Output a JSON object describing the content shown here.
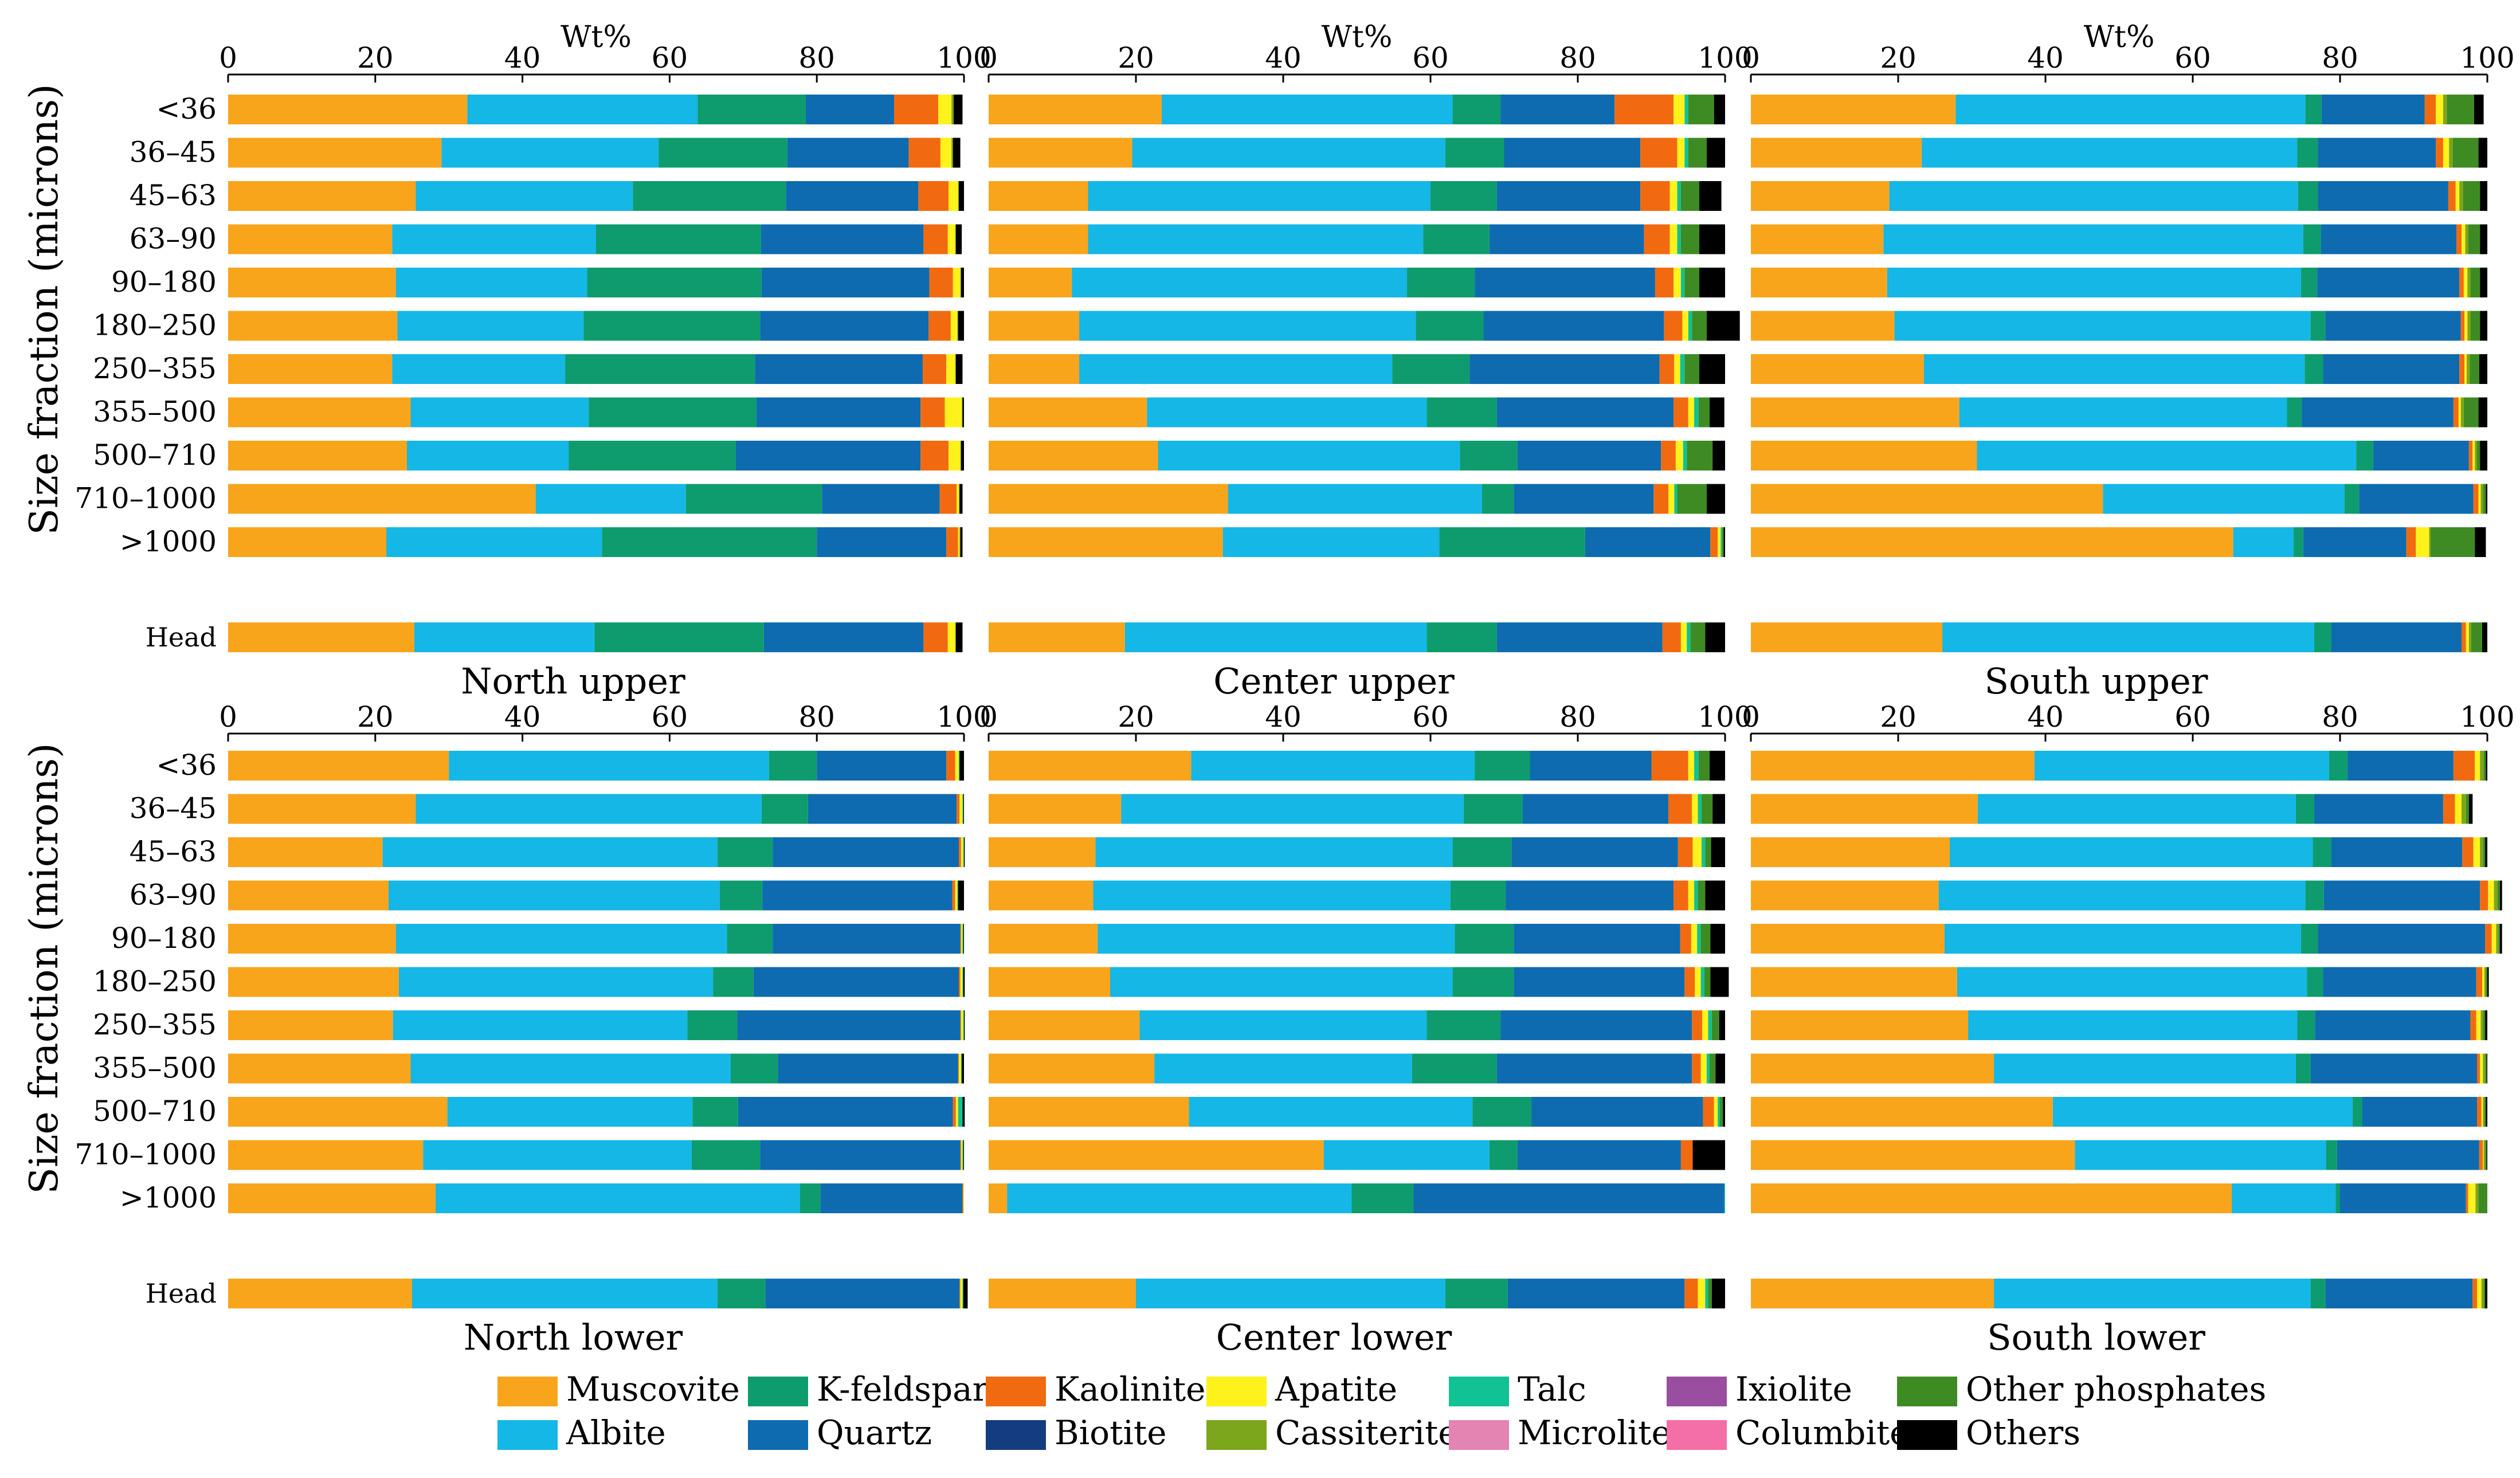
{
  "figure": {
    "ylabel": "Size fraction (microns)",
    "xlabel": "Wt%",
    "xticks": [
      "0",
      "20",
      "40",
      "60",
      "80",
      "100"
    ]
  },
  "colors": {
    "Muscovite": "#f8a51b",
    "Albite": "#14b7e5",
    "K-feldspar": "#0e9c6e",
    "Quartz": "#0e6bb0",
    "Kaolinite": "#f26a10",
    "Biotite": "#143c80",
    "Apatite": "#fff21c",
    "Cassiterite": "#7ca61c",
    "Talc": "#10c294",
    "Microlite": "#e384b2",
    "Ixiolite": "#9a4ea0",
    "Columbite": "#f46ea8",
    "Other phosphates": "#3e8b23",
    "Others": "#000000"
  },
  "legend": [
    "Muscovite",
    "K-feldspar",
    "Kaolinite",
    "Apatite",
    "Talc",
    "Ixiolite",
    "Other phosphates",
    "Albite",
    "Quartz",
    "Biotite",
    "Cassiterite",
    "Microlite",
    "Columbite",
    "Others"
  ],
  "chart_data": [
    {
      "type": "bar",
      "orientation": "horizontal",
      "stacked": true,
      "title": "North upper",
      "xlabel": "Wt%",
      "ylabel": "Size fraction (microns)",
      "xlim": [
        0,
        100
      ],
      "categories": [
        "<36",
        "36–45",
        "45–63",
        "63–90",
        "90–180",
        "180–250",
        "250–355",
        "355–500",
        "500–710",
        "710–1000",
        ">1000",
        "Head"
      ],
      "series": [
        {
          "name": "Muscovite",
          "values": [
            32.5,
            29,
            25.5,
            22.3,
            22.8,
            23,
            22.3,
            24.8,
            24.3,
            41.8,
            21.5,
            25.3
          ]
        },
        {
          "name": "Albite",
          "values": [
            31.3,
            29.5,
            29.5,
            27.7,
            26,
            25.3,
            23.5,
            24.2,
            22,
            20.4,
            29.3,
            24.5
          ]
        },
        {
          "name": "K-feldspar",
          "values": [
            14.7,
            17.5,
            20.8,
            22.4,
            23.7,
            24,
            25.8,
            22.8,
            22.7,
            18.5,
            29.2,
            23
          ]
        },
        {
          "name": "Quartz",
          "values": [
            12,
            16.5,
            18,
            22.1,
            22.8,
            22.9,
            22.8,
            22.3,
            25.1,
            16,
            17.6,
            21.7
          ]
        },
        {
          "name": "Kaolinite",
          "values": [
            6,
            4.3,
            4.1,
            3.3,
            3.2,
            3,
            3.2,
            3.3,
            3.8,
            2.3,
            1.6,
            3.3
          ]
        },
        {
          "name": "Apatite",
          "values": [
            1.8,
            1.5,
            1.3,
            1,
            1,
            0.9,
            1.2,
            2.3,
            1.6,
            0.3,
            0.2,
            1
          ]
        },
        {
          "name": "Cassiterite",
          "values": [
            0.3,
            0.2,
            0.1,
            0.1,
            0.1,
            0.1,
            0.1,
            0.1,
            0.1,
            0.1,
            0.1,
            0.1
          ]
        },
        {
          "name": "Others",
          "values": [
            1.2,
            1,
            0.7,
            0.8,
            0.4,
            0.8,
            0.9,
            0.2,
            0.4,
            0.4,
            0.3,
            0.9
          ]
        }
      ]
    },
    {
      "type": "bar",
      "orientation": "horizontal",
      "stacked": true,
      "title": "Center upper",
      "xlabel": "Wt%",
      "ylabel": "Size fraction (microns)",
      "xlim": [
        0,
        100
      ],
      "categories": [
        "<36",
        "36–45",
        "45–63",
        "63–90",
        "90–180",
        "180–250",
        "250–355",
        "355–500",
        "500–710",
        "710–1000",
        ">1000",
        "Head"
      ],
      "series": [
        {
          "name": "Muscovite",
          "values": [
            23.5,
            19.5,
            13.5,
            13.5,
            11.3,
            12.3,
            12.3,
            21.5,
            23,
            32.5,
            31.8,
            18.5
          ]
        },
        {
          "name": "Albite",
          "values": [
            39.5,
            42.5,
            46.5,
            45.5,
            45.5,
            45.7,
            42.5,
            38,
            41,
            34.5,
            29.4,
            41
          ]
        },
        {
          "name": "K-feldspar",
          "values": [
            6.5,
            8,
            9,
            9,
            9.2,
            9.2,
            10.5,
            9.5,
            7.8,
            4.3,
            19.8,
            9.5
          ]
        },
        {
          "name": "Quartz",
          "values": [
            15.5,
            18.5,
            19.5,
            21,
            24.5,
            24.5,
            25.8,
            24,
            19.5,
            19,
            17,
            22.5
          ]
        },
        {
          "name": "Kaolinite",
          "values": [
            8,
            5,
            4,
            3.5,
            2.5,
            2.5,
            2,
            2,
            2,
            2,
            1,
            2.5
          ]
        },
        {
          "name": "Apatite",
          "values": [
            1.5,
            1,
            1,
            1,
            1,
            0.8,
            0.8,
            0.8,
            1,
            0.8,
            0.4,
            0.8
          ]
        },
        {
          "name": "Talc",
          "values": [
            0.5,
            0.5,
            0.5,
            0.5,
            0.5,
            0.5,
            0.6,
            0.6,
            0.5,
            0.4,
            0.2,
            0.5
          ]
        },
        {
          "name": "Other phosphates",
          "values": [
            3.5,
            2.5,
            2.5,
            2.5,
            2,
            2,
            2,
            1.5,
            3.5,
            4,
            0.2,
            2
          ]
        },
        {
          "name": "Others",
          "values": [
            1.5,
            2.5,
            3,
            3.5,
            3.5,
            4.5,
            3.5,
            2,
            1.7,
            2.5,
            0.2,
            2.7
          ]
        }
      ]
    },
    {
      "type": "bar",
      "orientation": "horizontal",
      "stacked": true,
      "title": "South upper",
      "xlabel": "Wt%",
      "ylabel": "Size fraction (microns)",
      "xlim": [
        0,
        100
      ],
      "categories": [
        "<36",
        "36–45",
        "45–63",
        "63–90",
        "90–180",
        "180–250",
        "250–355",
        "355–500",
        "500–710",
        "710–1000",
        ">1000",
        "Head"
      ],
      "series": [
        {
          "name": "Muscovite",
          "values": [
            27.8,
            23.2,
            18.8,
            18,
            18.5,
            19.5,
            23.5,
            28.3,
            30.7,
            47.8,
            65.5,
            26
          ]
        },
        {
          "name": "Albite",
          "values": [
            47.5,
            51,
            55.5,
            57,
            56.2,
            56.5,
            51.7,
            44.5,
            51.5,
            32.8,
            8.2,
            50.5
          ]
        },
        {
          "name": "K-feldspar",
          "values": [
            2.2,
            2.8,
            2.7,
            2.4,
            2.2,
            2,
            2.5,
            2,
            2.3,
            2,
            1.3,
            2.3
          ]
        },
        {
          "name": "Quartz",
          "values": [
            14,
            16,
            17.7,
            18.4,
            19.3,
            18.4,
            18.5,
            20.6,
            13,
            15.5,
            14,
            17.7
          ]
        },
        {
          "name": "Kaolinite",
          "values": [
            1.5,
            1,
            1,
            0.7,
            0.6,
            0.5,
            0.7,
            0.7,
            0.5,
            0.7,
            1.3,
            0.6
          ]
        },
        {
          "name": "Apatite",
          "values": [
            1,
            0.8,
            0.5,
            0.5,
            0.5,
            0.4,
            0.3,
            0.3,
            0.3,
            0.3,
            1.8,
            0.4
          ]
        },
        {
          "name": "Cassiterite",
          "values": [
            0.5,
            0.5,
            0.5,
            0.4,
            0.4,
            0.4,
            0.4,
            0.4,
            0.3,
            0.3,
            0.2,
            0.3
          ]
        },
        {
          "name": "Other phosphates",
          "values": [
            3.7,
            3.5,
            2.3,
            1.6,
            1.3,
            1.3,
            1.3,
            2,
            0.4,
            0.4,
            6,
            1.5
          ]
        },
        {
          "name": "Others",
          "values": [
            1.3,
            1.2,
            1,
            1,
            1,
            1,
            1.1,
            1.2,
            1,
            0.2,
            1.5,
            0.7
          ]
        }
      ]
    },
    {
      "type": "bar",
      "orientation": "horizontal",
      "stacked": true,
      "title": "North lower",
      "xlabel": "Wt%",
      "ylabel": "Size fraction (microns)",
      "xlim": [
        0,
        100
      ],
      "categories": [
        "<36",
        "36–45",
        "45–63",
        "63–90",
        "90–180",
        "180–250",
        "250–355",
        "355–500",
        "500–710",
        "710–1000",
        ">1000",
        "Head"
      ],
      "series": [
        {
          "name": "Muscovite",
          "values": [
            30,
            25.5,
            21,
            21.8,
            22.8,
            23.2,
            22.4,
            24.8,
            29.8,
            26.5,
            28.2,
            25
          ]
        },
        {
          "name": "Albite",
          "values": [
            43.5,
            47,
            45.5,
            45,
            45,
            42.7,
            40,
            43.5,
            33.3,
            36.5,
            49.5,
            41.5
          ]
        },
        {
          "name": "K-feldspar",
          "values": [
            6.5,
            6.3,
            7.5,
            5.8,
            6.2,
            5.5,
            6.8,
            6.4,
            6.2,
            9.3,
            2.8,
            6.5
          ]
        },
        {
          "name": "Quartz",
          "values": [
            17.6,
            20.2,
            25.3,
            25.8,
            25.5,
            27.9,
            30.3,
            24.5,
            29.2,
            27.2,
            19.3,
            26.4
          ]
        },
        {
          "name": "Kaolinite",
          "values": [
            1.2,
            0.4,
            0.3,
            0.4,
            0.1,
            0.2,
            0.1,
            0.1,
            0.4,
            0.1,
            0.1,
            0.1
          ]
        },
        {
          "name": "Apatite",
          "values": [
            0.5,
            0.4,
            0.3,
            0.3,
            0.2,
            0.3,
            0.3,
            0.3,
            0.3,
            0.2,
            0.1,
            0.3
          ]
        },
        {
          "name": "Talc",
          "values": [
            0.1,
            0.1,
            0.1,
            0.1,
            0.1,
            0.1,
            0.1,
            0.1,
            0.6,
            0.1,
            0,
            0.1
          ]
        },
        {
          "name": "Others",
          "values": [
            0.6,
            0.1,
            0.1,
            0.8,
            0.1,
            0.2,
            0.1,
            0.3,
            0.3,
            0.1,
            0,
            0.6
          ]
        }
      ]
    },
    {
      "type": "bar",
      "orientation": "horizontal",
      "stacked": true,
      "title": "Center lower",
      "xlabel": "Wt%",
      "ylabel": "Size fraction (microns)",
      "xlim": [
        0,
        100
      ],
      "categories": [
        "<36",
        "36–45",
        "45–63",
        "63–90",
        "90–180",
        "180–250",
        "250–355",
        "355–500",
        "500–710",
        "710–1000",
        ">1000",
        "Head"
      ],
      "series": [
        {
          "name": "Muscovite",
          "values": [
            27.5,
            18,
            14.5,
            14.2,
            14.8,
            16.5,
            20.5,
            22.5,
            27.2,
            45.5,
            2.5,
            20
          ]
        },
        {
          "name": "Albite",
          "values": [
            38.5,
            46.5,
            48.5,
            48.5,
            48.5,
            46.5,
            39,
            35,
            38.5,
            22.5,
            46.8,
            42
          ]
        },
        {
          "name": "K-feldspar",
          "values": [
            7.5,
            8,
            8,
            7.5,
            8,
            8.3,
            10,
            11.5,
            8,
            3.8,
            8.4,
            8.5
          ]
        },
        {
          "name": "Quartz",
          "values": [
            16.5,
            19.8,
            22.6,
            22.8,
            22.6,
            23.2,
            26,
            26.5,
            23.3,
            22.2,
            42.2,
            24
          ]
        },
        {
          "name": "Kaolinite",
          "values": [
            5,
            3.2,
            2,
            2,
            1.5,
            1.4,
            1.4,
            1.2,
            1.5,
            1.6,
            0,
            1.8
          ]
        },
        {
          "name": "Apatite",
          "values": [
            0.8,
            0.8,
            1.2,
            0.8,
            0.8,
            0.8,
            0.8,
            0.8,
            0.5,
            0,
            0,
            1
          ]
        },
        {
          "name": "Talc",
          "values": [
            0.6,
            0.5,
            0.5,
            0.5,
            0.5,
            0.5,
            0.5,
            0.4,
            0.3,
            0,
            0.1,
            0.4
          ]
        },
        {
          "name": "Other phosphates",
          "values": [
            1.5,
            1.5,
            0.8,
            1,
            1.3,
            0.8,
            1,
            0.8,
            0.4,
            0,
            0,
            0.5
          ]
        },
        {
          "name": "Others",
          "values": [
            2.1,
            1.7,
            1.9,
            2.7,
            2,
            2.5,
            0.8,
            1.3,
            0.3,
            4.4,
            0,
            1.8
          ]
        }
      ]
    },
    {
      "type": "bar",
      "orientation": "horizontal",
      "stacked": true,
      "title": "South lower",
      "xlabel": "Wt%",
      "ylabel": "Size fraction (microns)",
      "xlim": [
        0,
        100
      ],
      "categories": [
        "<36",
        "36–45",
        "45–63",
        "63–90",
        "90–180",
        "180–250",
        "250–355",
        "355–500",
        "500–710",
        "710–1000",
        ">1000",
        "Head"
      ],
      "series": [
        {
          "name": "Muscovite",
          "values": [
            38.5,
            30.8,
            27,
            25.5,
            26.3,
            28,
            29.5,
            33,
            41,
            44,
            65.3,
            33
          ]
        },
        {
          "name": "Albite",
          "values": [
            40,
            43.2,
            49.3,
            49.8,
            48.4,
            47.5,
            44.7,
            41,
            40.7,
            34.1,
            14.1,
            43
          ]
        },
        {
          "name": "K-feldspar",
          "values": [
            2.5,
            2.5,
            2.5,
            2.5,
            2.3,
            2.2,
            2.4,
            2,
            1.3,
            1.5,
            0.6,
            2
          ]
        },
        {
          "name": "Quartz",
          "values": [
            14.4,
            17.5,
            17.8,
            21.2,
            22.7,
            20.8,
            21.1,
            22.6,
            15.6,
            19.3,
            17.1,
            20
          ]
        },
        {
          "name": "Kaolinite",
          "values": [
            2.9,
            1.6,
            1.5,
            1.1,
            0.9,
            0.8,
            0.8,
            0.4,
            0.6,
            0.5,
            0.3,
            0.6
          ]
        },
        {
          "name": "Apatite",
          "values": [
            0.7,
            0.9,
            0.9,
            0.8,
            0.6,
            0.3,
            0.6,
            0.4,
            0.2,
            0.1,
            1,
            0.6
          ]
        },
        {
          "name": "Cassiterite",
          "values": [
            0.5,
            0.6,
            0.4,
            0.5,
            0.3,
            0.2,
            0.3,
            0.3,
            0.2,
            0.2,
            0.4,
            0.3
          ]
        },
        {
          "name": "Other phosphates",
          "values": [
            0.3,
            0.4,
            0.3,
            0.3,
            0.2,
            0.2,
            0.3,
            0.2,
            0.2,
            0.2,
            1.2,
            0.2
          ]
        },
        {
          "name": "Others",
          "values": [
            0.2,
            0.5,
            0.3,
            0.3,
            0.3,
            0.2,
            0.3,
            0.1,
            0.2,
            0.1,
            0,
            0.3
          ]
        }
      ]
    }
  ]
}
